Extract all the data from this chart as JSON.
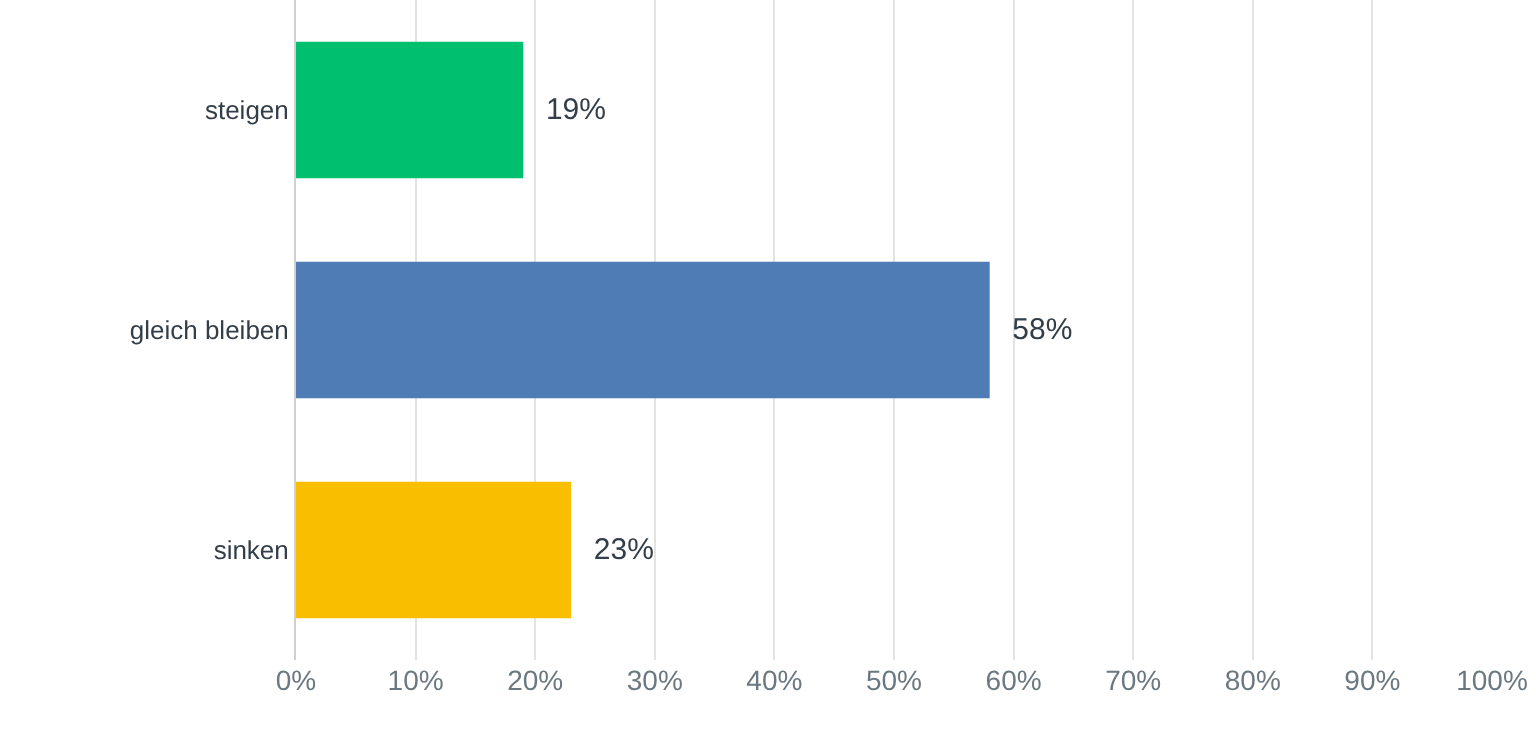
{
  "chart_data": {
    "type": "bar",
    "orientation": "horizontal",
    "categories": [
      "steigen",
      "gleich bleiben",
      "sinken"
    ],
    "values": [
      19,
      58,
      23
    ],
    "colors": [
      "#00bf6f",
      "#507cb6",
      "#f9be00"
    ],
    "value_labels": [
      "19%",
      "58%",
      "23%"
    ],
    "xlim": [
      0,
      100
    ],
    "xticks": [
      {
        "value": 0,
        "label": "0%"
      },
      {
        "value": 10,
        "label": "10%"
      },
      {
        "value": 20,
        "label": "20%"
      },
      {
        "value": 30,
        "label": "30%"
      },
      {
        "value": 40,
        "label": "40%"
      },
      {
        "value": 50,
        "label": "50%"
      },
      {
        "value": 60,
        "label": "60%"
      },
      {
        "value": 70,
        "label": "70%"
      },
      {
        "value": 80,
        "label": "80%"
      },
      {
        "value": 90,
        "label": "90%"
      },
      {
        "value": 100,
        "label": "100%"
      }
    ],
    "grid": "x",
    "legend": false
  }
}
